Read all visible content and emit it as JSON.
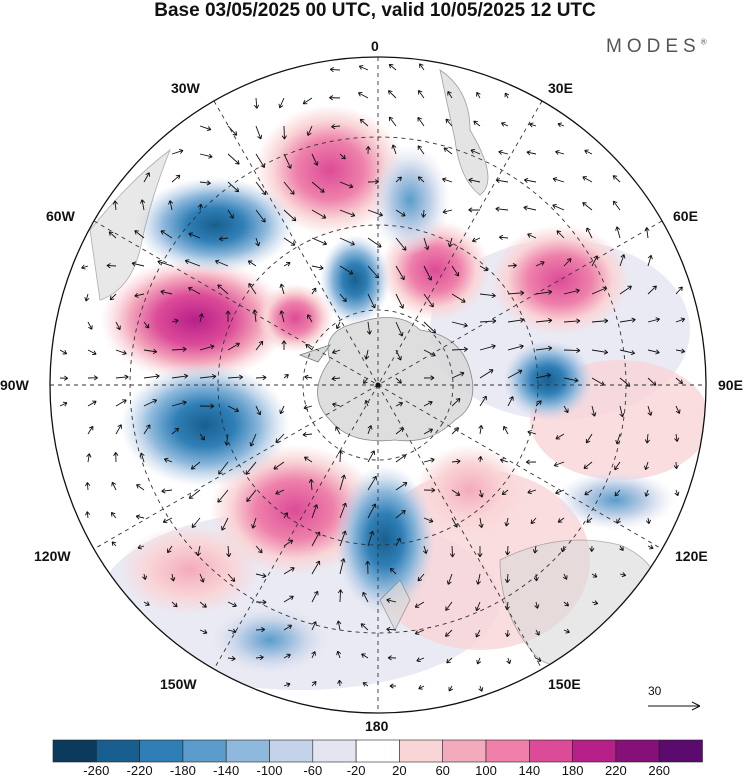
{
  "title": "Base 03/05/2025 00 UTC, valid 10/05/2025 12 UTC",
  "brand": {
    "name": "MODES",
    "mark": "®"
  },
  "longitude_labels": {
    "top": "0",
    "bottom": "180",
    "left": "90W",
    "right": "90E",
    "upper_left_30": "30W",
    "upper_right_30": "30E",
    "upper_left_60": "60W",
    "upper_right_60": "60E",
    "lower_left_120": "120W",
    "lower_right_120": "120E",
    "lower_left_150": "150W",
    "lower_right_150": "150E"
  },
  "reference_vector": {
    "label": "30",
    "icon": "arrow-icon"
  },
  "colorbar": {
    "ticks": [
      "-260",
      "-220",
      "-180",
      "-140",
      "-100",
      "-60",
      "-20",
      "20",
      "60",
      "100",
      "140",
      "180",
      "220",
      "260"
    ],
    "colors": [
      "#0c3a5c",
      "#185f8f",
      "#2f7fb6",
      "#5a9ccb",
      "#8fb9dc",
      "#c4d3e9",
      "#e5e5f1",
      "#ffffff",
      "#f9d5d7",
      "#f4aabd",
      "#ee80aa",
      "#dc4b98",
      "#b71f89",
      "#851079",
      "#5a0b6d"
    ]
  },
  "map": {
    "projection": "south-polar-stereographic",
    "continent": "Antarctica",
    "field": "anomaly"
  }
}
